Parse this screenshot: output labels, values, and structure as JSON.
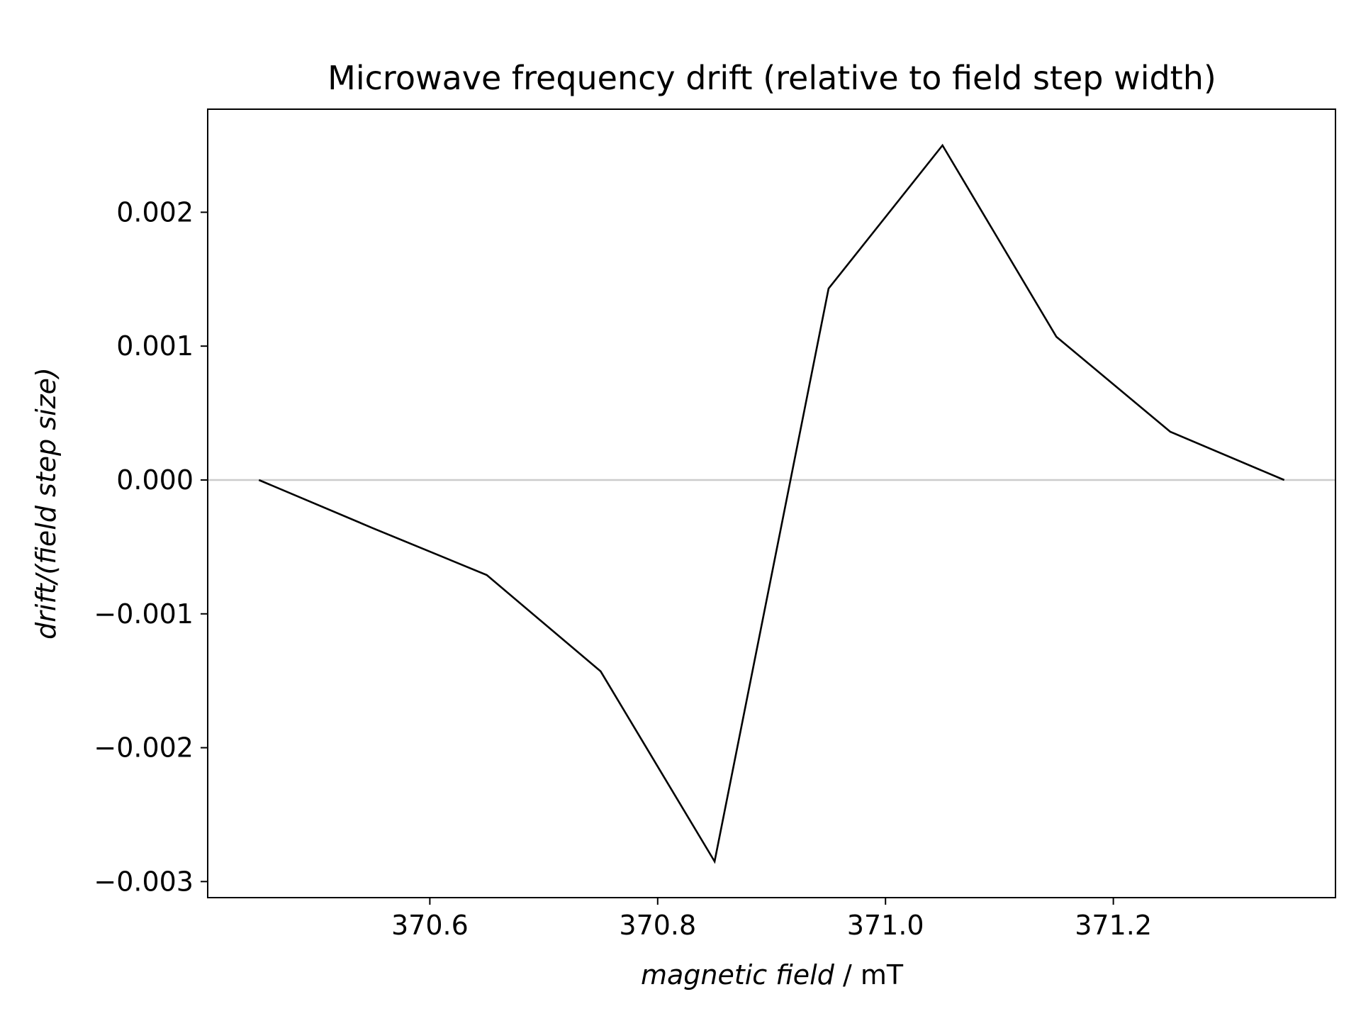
{
  "chart_data": {
    "type": "line",
    "title": "Microwave frequency drift (relative to field step width)",
    "xlabel": {
      "italic": "magnetic field",
      "rest": " / mT"
    },
    "ylabel": "drift/(field step size)",
    "x": [
      370.45,
      370.55,
      370.65,
      370.75,
      370.85,
      370.95,
      371.05,
      371.15,
      371.25,
      371.35
    ],
    "series": [
      {
        "values": [
          0.0,
          -0.00036,
          -0.00071,
          -0.00143,
          -0.00285,
          0.00143,
          0.0025,
          0.00107,
          0.00036,
          0.0
        ]
      }
    ],
    "xlim": [
      370.405,
      371.395
    ],
    "ylim": [
      -0.00312,
      0.00277
    ],
    "xticks": [
      370.6,
      370.8,
      371.0,
      371.2
    ],
    "xtick_labels": [
      "370.6",
      "370.8",
      "371.0",
      "371.2"
    ],
    "yticks": [
      -0.003,
      -0.002,
      -0.001,
      0.0,
      0.001,
      0.002
    ],
    "ytick_labels": [
      "−0.003",
      "−0.002",
      "−0.001",
      "0.000",
      "0.001",
      "0.002"
    ],
    "zero_line": true,
    "grid": false,
    "line_color": "#000000",
    "zero_line_color": "#cccccc"
  }
}
